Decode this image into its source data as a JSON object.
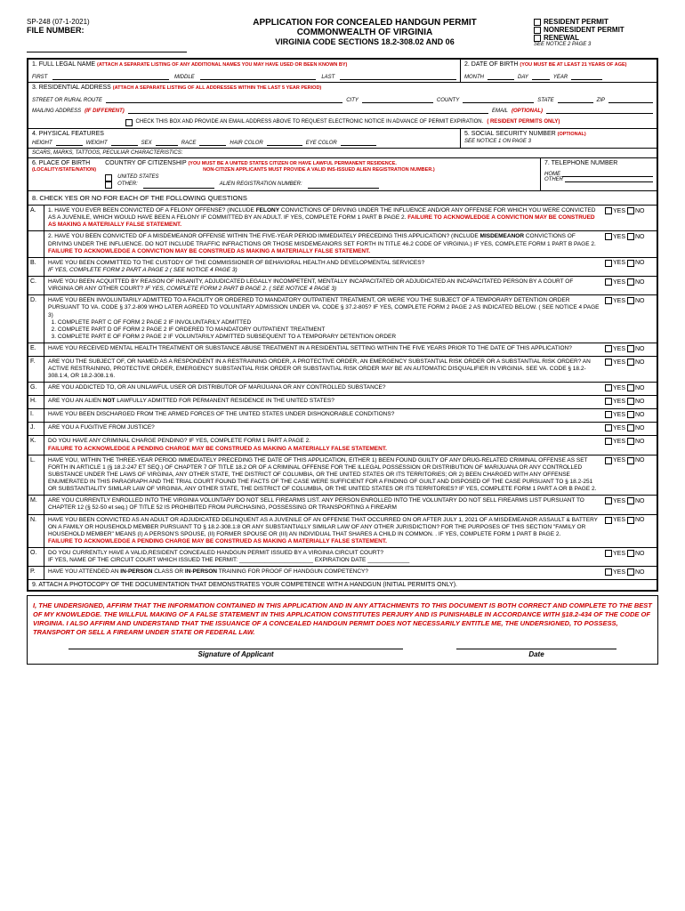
{
  "form_id": "SP-248 (07-1-2021)",
  "file_number_label": "FILE NUMBER:",
  "title1": "APPLICATION FOR CONCEALED HANDGUN PERMIT",
  "title2": "COMMONWEALTH OF VIRGINIA",
  "title3": "VIRGINIA CODE SECTIONS 18.2-308.02 AND 06",
  "permit_types": {
    "resident": "RESIDENT PERMIT",
    "nonresident": "NONRESIDENT PERMIT",
    "renewal": "RENEWAL",
    "note": "SEE NOTICE 2 PAGE 3"
  },
  "s1": {
    "label": "1. FULL LEGAL NAME",
    "note": "(ATTACH A SEPARATE LISTING OF ANY ADDITIONAL NAMES YOU MAY HAVE USED OR BEEN KNOWN BY)",
    "first": "FIRST",
    "middle": "MIDDLE",
    "last": "LAST"
  },
  "s2": {
    "label": "2. DATE OF BIRTH",
    "note": "(YOU MUST BE AT LEAST 21 YEARS OF AGE)",
    "month": "MONTH",
    "day": "DAY",
    "year": "YEAR"
  },
  "s3": {
    "label": "3. RESIDENTIAL ADDRESS",
    "note": "(ATTACH A SEPARATE LISTING OF ALL ADDRESSES WITHIN THE LAST 5 YEAR PERIOD)",
    "street": "STREET OR RURAL ROUTE",
    "city": "CITY",
    "county": "COUNTY",
    "state": "STATE",
    "zip": "ZIP",
    "mailing": "MAILING ADDRESS",
    "ifdiff": "(IF DIFFERENT)",
    "email": "EMAIL",
    "optional": "(OPTIONAL)",
    "checkbox_text": "CHECK THIS BOX AND PROVIDE AN EMAIL ADDRESS ABOVE TO REQUEST ELECTRONIC NOTICE IN ADVANCE OF PERMIT EXPIRATION.",
    "resident_only": "( RESIDENT PERMITS ONLY)"
  },
  "s4": {
    "label": "4. PHYSICAL FEATURES",
    "height": "HEIGHT",
    "weight": "WEIGHT",
    "sex": "SEX",
    "race": "RACE",
    "hair": "HAIR COLOR",
    "eye": "EYE COLOR",
    "scars": "SCARS, MARKS, TATTOOS, PECULIAR CHARACTERISTICS:"
  },
  "s5": {
    "label": "5. SOCIAL SECURITY NUMBER",
    "optional": "(OPTIONAL)",
    "note": "SEE NOTICE 1 ON PAGE 3"
  },
  "s6": {
    "label": "6. PLACE OF BIRTH",
    "loc": "(LOCALITY/STATE/NATION)",
    "citizenship": "COUNTRY OF CITIZENSHIP",
    "cnote1": "(YOU MUST BE A UNITED STATES CITIZEN OR HAVE LAWFUL PERMANENT RESIDENCE.",
    "cnote2": "NON-CITIZEN APPLICANTS MUST PROVIDE A VALID INS-ISSUED ALIEN REGISTRATION NUMBER.)",
    "us": "UNITED STATES",
    "other": "OTHER:",
    "alien": "ALIEN REGISTRATION NUMBER:"
  },
  "s7": {
    "label": "7. TELEPHONE NUMBER",
    "home": "HOME",
    "other": "OTHER"
  },
  "s8_header": "8. CHECK YES OR NO FOR EACH OF THE FOLLOWING QUESTIONS",
  "yes": "YES",
  "no": "NO",
  "questions": [
    {
      "l": "A.",
      "t": "1. HAVE YOU EVER BEEN CONVICTED OF A FELONY OFFENSE? (INCLUDE <b>FELONY</b> CONVICTIONS OF DRIVING UNDER THE INFLUENCE AND/OR ANY OFFENSE FOR WHICH YOU WERE CONVICTED AS A JUVENILE, WHICH WOULD HAVE BEEN A FELONY IF COMMITTED BY AN ADULT. IF YES, COMPLETE FORM 1 PART B PAGE 2. <span class='red bold'>FAILURE TO ACKNOWLEDGE A CONVICTION MAY BE CONSTRUED AS MAKING A MATERIALLY FALSE STATEMENT.</span>",
      "yn": true
    },
    {
      "l": "",
      "t": "2. HAVE YOU BEEN CONVICTED OF A MISDEMEANOR OFFENSE WITHIN THE FIVE-YEAR PERIOD IMMEDIATELY PRECEDING THIS APPLICATION? (INCLUDE <b>MISDEMEANOR</b> CONVICTIONS OF DRIVING UNDER THE INFLUENCE. DO NOT INCLUDE TRAFFIC INFRACTIONS OR THOSE MISDEMEANORS SET FORTH IN TITLE 46.2 CODE OF VIRGINIA.) IF YES, COMPLETE FORM 1 PART B PAGE 2. <span class='red bold'>FAILURE TO ACKNOWLEDGE A CONVICTION MAY BE CONSTRUED AS MAKING A MATERIALLY FALSE STATEMENT.</span>",
      "yn": true
    },
    {
      "l": "B.",
      "t": "HAVE YOU BEEN COMMITTED TO THE CUSTODY OF THE COMMISSIONER OF BEHAVIORAL HEALTH AND DEVELOPMENTAL SERVICES?<br><i>IF YES, COMPLETE FORM 2 PART A PAGE 2 ( SEE NOTICE 4 PAGE 3)</i>",
      "yn": true
    },
    {
      "l": "C.",
      "t": "HAVE YOU BEEN ACQUITTED BY REASON OF INSANITY, ADJUDICATED LEGALLY INCOMPETENT, MENTALLY INCAPACITATED OR ADJUDICATED AN INCAPACITATED PERSON BY A COURT OF VIRGINIA OR ANY OTHER COURT? <i>IF YES, COMPLETE FORM 2 PART B PAGE 2. ( SEE NOTICE 4 PAGE 3)</i>",
      "yn": true
    },
    {
      "l": "D.",
      "t": "HAVE YOU BEEN INVOLUNTARILY ADMITTED TO A FACILITY OR ORDERED TO MANDATORY OUTPATIENT TREATMENT, OR WERE YOU THE SUBJECT OF A TEMPORARY DETENTION ORDER PURSUANT TO VA. CODE § 37.2-809 WHO LATER AGREED TO VOLUNTARY ADMISSION UNDER VA. CODE § 37.2-805? IF YES, COMPLETE FORM 2 PAGE 2 AS INDICATED BELOW. ( SEE NOTICE 4 PAGE 3)<br>&nbsp;&nbsp;1. COMPLETE PART C OF FORM 2 PAGE 2 IF INVOLUNTARILY ADMITTED<br>&nbsp;&nbsp;2. COMPLETE PART D OF FORM 2 PAGE 2 IF ORDERED TO MANDATORY OUTPATIENT TREATMENT<br>&nbsp;&nbsp;3. COMPLETE PART E OF FORM 2 PAGE 2 IF VOLUNTARILY ADMITTED SUBSEQUENT TO A TEMPORARY DETENTION ORDER",
      "yn": true
    },
    {
      "l": "E.",
      "t": "HAVE YOU RECEIVED MENTAL HEALTH TREATMENT OR SUBSTANCE ABUSE TREATMENT IN A RESIDENTIAL SETTING WITHIN THE FIVE YEARS PRIOR TO THE DATE OF THIS APPLICATION?",
      "yn": true
    },
    {
      "l": "F.",
      "t": "ARE YOU THE SUBJECT OF, OR NAMED AS A RESPONDENT IN A RESTRAINING ORDER, A PROTECTIVE ORDER, AN EMERGENCY SUBSTANTIAL RISK ORDER OR A SUBSTANTIAL RISK ORDER? AN ACTIVE RESTRAINING, PROTECTIVE ORDER, EMERGENCY SUBSTANTIAL RISK ORDER OR SUBSTANTIAL RISK ORDER MAY BE AN AUTOMATIC DISQUALIFIER IN VIRGINIA. SEE VA. CODE § 18.2-308.1:4, OR 18.2-308.1:6.",
      "yn": true
    },
    {
      "l": "G.",
      "t": "ARE YOU ADDICTED TO, OR AN UNLAWFUL USER OR DISTRIBUTOR OF MARIJUANA OR ANY CONTROLLED SUBSTANCE?",
      "yn": true
    },
    {
      "l": "H.",
      "t": "ARE YOU AN ALIEN <b>NOT</b> LAWFULLY ADMITTED FOR PERMANENT RESIDENCE IN THE UNITED STATES?",
      "yn": true
    },
    {
      "l": "I.",
      "t": "HAVE YOU BEEN DISCHARGED FROM THE ARMED FORCES OF THE UNITED STATES UNDER DISHONORABLE CONDITIONS?",
      "yn": true
    },
    {
      "l": "J.",
      "t": "ARE YOU A FUGITIVE FROM JUSTICE?",
      "yn": true
    },
    {
      "l": "K.",
      "t": "DO YOU HAVE ANY CRIMINAL CHARGE PENDING? IF YES, COMPLETE FORM 1 PART A PAGE 2.<br><span class='red bold'>FAILURE TO ACKNOWLEDGE A PENDING CHARGE MAY BE CONSTRUED AS MAKING A MATERIALLY FALSE STATEMENT.</span>",
      "yn": true
    },
    {
      "l": "L.",
      "t": "HAVE YOU, WITHIN THE THREE-YEAR PERIOD IMMEDIATELY PRECEDING THE DATE OF THIS APPLICATION, EITHER 1) BEEN FOUND GUILTY OF ANY DRUG-RELATED CRIMINAL OFFENSE AS SET FORTH IN ARTICLE 1 (§ 18.2-247 ET SEQ.) OF CHAPTER 7 OF TITLE 18.2 OR OF A CRIMINAL OFFENSE FOR THE ILLEGAL POSSESSION OR DISTRIBUTION OF MARIJUANA OR ANY CONTROLLED SUBSTANCE UNDER THE LAWS OF VIRGINIA, ANY OTHER STATE, THE DISTRICT OF COLUMBIA, OR THE UNITED STATES OR ITS TERRITORIES; OR 2) BEEN CHARGED WITH ANY OFFENSE ENUMERATED IN THIS PARAGRAPH AND THE TRIAL COURT FOUND THE FACTS OF THE CASE WERE SUFFICIENT FOR A FINDING OF GUILT AND DISPOSED OF THE CASE PURSUANT TO § 18.2-251 OR SUBSTANTIALITY SIMILAR LAW OF VIRGINIA, ANY OTHER STATE, THE DISTRICT OF COLUMBIA, OR THE UNITED STATES OR ITS TERRITORIES? IF YES, COMPLETE FORM 1 PART A OR B PAGE 2.",
      "yn": true
    },
    {
      "l": "M.",
      "t": "ARE YOU CURRENTLY ENROLLED INTO THE VIRGINIA VOLUNTARY DO NOT SELL FIREARMS LIST. ANY PERSON ENROLLED INTO THE VOLUNTARY DO NOT SELL FIREARMS LIST PURSUANT TO CHAPTER 12 (§ 52-50 et seq.) OF TITLE 52 IS PROHIBITED FROM PURCHASING, POSSESSING OR TRANSPORTING A FIREARM",
      "yn": true
    },
    {
      "l": "N.",
      "t": "HAVE YOU BEEN CONVICTED AS AN ADULT OR ADJUDICATED DELINQUENT AS A JUVENILE OF AN OFFENSE THAT OCCURRED ON OR AFTER JULY 1, 2021 OF A MISDEMEANOR ASSAULT & BATTERY ON A FAMILY OR HOUSEHOLD MEMBER PURSUANT TO § 18.2-308.1:8 OR ANY SUBSTANTIALLY SIMILAR LAW OF ANY OTHER JURISDICTION? FOR THE PURPOSES OF THIS SECTION \"FAMILY OR HOUSEHOLD MEMBER\" MEANS (I) A PERSON'S SPOUSE, (II) FORMER SPOUSE OR (III) AN INDIVIDUAL THAT SHARES A CHILD IN COMMON. . IF YES, COMPLETE FORM 1 PART B PAGE 2.<br><span class='red bold'>FAILURE TO ACKNOWLEDGE A PENDING CHARGE MAY BE CONSTRUED AS MAKING A MATERIALLY FALSE STATEMENT.</span>",
      "yn": true
    },
    {
      "l": "O.",
      "t": "DO YOU CURRENTLY HAVE A VALID,RESIDENT CONCEALED HANDGUN PERMIT ISSUED BY A VIRGINIA CIRCUIT COURT?<br>IF YES, NAME OF THE CIRCUIT COURT WHICH ISSUED THE PERMIT: _______________________ EXPIRATION DATE _____________",
      "yn": true
    },
    {
      "l": "P.",
      "t": "HAVE YOU ATTENDED AN <b>IN-PERSON</b> CLASS OR <b>IN-PERSON</b> TRAINING FOR PROOF OF HANDGUN COMPETENCY?",
      "yn": true
    }
  ],
  "s9": "9.   ATTACH A PHOTOCOPY OF THE DOCUMENTATION THAT DEMONSTRATES YOUR COMPETENCE WITH A HANDGUN (INITIAL PERMITS ONLY).",
  "affirm": "I, THE UNDERSIGNED, AFFIRM THAT THE INFORMATION CONTAINED IN THIS APPLICATION AND IN ANY ATTACHMENTS TO THIS DOCUMENT IS BOTH CORRECT AND COMPLETE TO THE BEST OF MY KNOWLEDGE. THE WILLFUL MAKING OF A FALSE STATEMENT IN THIS APPLICATION CONSTITUTES PERJURY AND IS PUNISHABLE IN ACCORDANCE WITH §18.2-434 OF THE CODE OF VIRGINIA. I ALSO AFFIRM AND UNDERSTAND THAT THE ISSUANCE OF A CONCEALED HANDGUN PERMIT DOES NOT NECESSARILY ENTITLE ME, THE UNDERSIGNED, TO POSSESS, TRANSPORT OR SELL A FIREARM UNDER STATE OR FEDERAL LAW.",
  "sig_applicant": "Signature of Applicant",
  "sig_date": "Date"
}
